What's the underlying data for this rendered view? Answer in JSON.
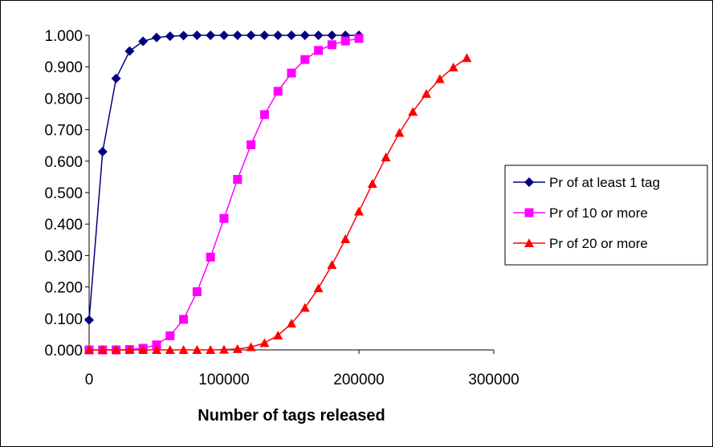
{
  "chart_data": {
    "type": "line",
    "title": "",
    "xlabel": "Number of tags released",
    "ylabel": "",
    "xlim": [
      0,
      300000
    ],
    "ylim": [
      0,
      1
    ],
    "x_ticks": [
      "0",
      "100000",
      "200000",
      "300000"
    ],
    "y_ticks": [
      "0.000",
      "0.100",
      "0.200",
      "0.300",
      "0.400",
      "0.500",
      "0.600",
      "0.700",
      "0.800",
      "0.900",
      "1.000"
    ],
    "grid": false,
    "legend_position": "right",
    "series": [
      {
        "name": "Pr of at least 1 tag",
        "color": "#000080",
        "marker": "diamond",
        "x": [
          0,
          10000,
          20000,
          30000,
          40000,
          50000,
          60000,
          70000,
          80000,
          90000,
          100000,
          110000,
          120000,
          130000,
          140000,
          150000,
          160000,
          170000,
          180000,
          190000,
          200000
        ],
        "y": [
          0.095,
          0.63,
          0.863,
          0.95,
          0.981,
          0.993,
          0.997,
          0.999,
          1.0,
          1.0,
          1.0,
          1.0,
          1.0,
          1.0,
          1.0,
          1.0,
          1.0,
          1.0,
          1.0,
          1.0,
          1.0
        ]
      },
      {
        "name": "Pr of 10 or more",
        "color": "#FF00FF",
        "marker": "square",
        "x": [
          0,
          10000,
          20000,
          30000,
          40000,
          50000,
          60000,
          70000,
          80000,
          90000,
          100000,
          110000,
          120000,
          130000,
          140000,
          150000,
          160000,
          170000,
          180000,
          190000,
          200000
        ],
        "y": [
          0.0,
          0.0,
          0.0,
          0.001,
          0.005,
          0.016,
          0.045,
          0.097,
          0.185,
          0.295,
          0.418,
          0.542,
          0.652,
          0.748,
          0.822,
          0.88,
          0.923,
          0.952,
          0.97,
          0.982,
          0.99
        ]
      },
      {
        "name": "Pr of 20 or more",
        "color": "#FF0000",
        "marker": "triangle",
        "x": [
          0,
          10000,
          20000,
          30000,
          40000,
          50000,
          60000,
          70000,
          80000,
          90000,
          100000,
          110000,
          120000,
          130000,
          140000,
          150000,
          160000,
          170000,
          180000,
          190000,
          200000,
          210000,
          220000,
          230000,
          240000,
          250000,
          260000,
          270000,
          280000
        ],
        "y": [
          0.0,
          0.0,
          0.0,
          0.0,
          0.0,
          0.0,
          0.0,
          0.0,
          0.0,
          0.0,
          0.001,
          0.003,
          0.009,
          0.022,
          0.046,
          0.084,
          0.134,
          0.196,
          0.27,
          0.352,
          0.44,
          0.528,
          0.612,
          0.69,
          0.757,
          0.814,
          0.861,
          0.898,
          0.928
        ]
      }
    ]
  }
}
